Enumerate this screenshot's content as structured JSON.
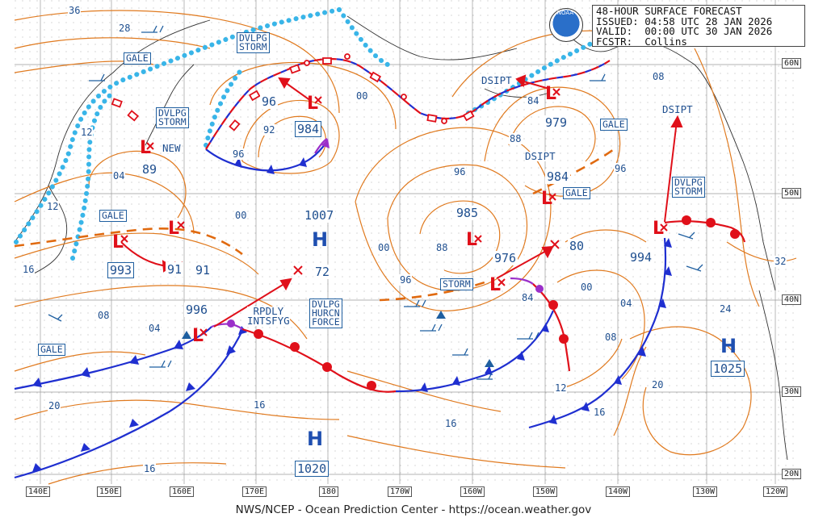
{
  "header": {
    "title": "48-HOUR SURFACE FORECAST",
    "issued": "ISSUED: 04:58 UTC 28 JAN 2026",
    "valid": "VALID:  00:00 UTC 30 JAN 2026",
    "forecaster": "FCSTR:  Collins"
  },
  "logo": "NOAA",
  "footer": "NWS/NCEP - Ocean Prediction Center - https://ocean.weather.gov",
  "longitude_labels": [
    "140E",
    "150E",
    "160E",
    "170E",
    "180",
    "170W",
    "160W",
    "150W",
    "140W",
    "130W",
    "120W"
  ],
  "latitude_labels": [
    "60N",
    "50N",
    "40N",
    "30N",
    "20N"
  ],
  "highs": [
    {
      "symbol": "H",
      "pressure": "1007"
    },
    {
      "symbol": "H",
      "pressure": "1020"
    },
    {
      "symbol": "H",
      "pressure": "1025"
    }
  ],
  "lows": [
    "984",
    "979",
    "984",
    "985",
    "976",
    "996",
    "993",
    "89",
    "96",
    "994"
  ],
  "x_pressures": [
    "91",
    "72",
    "80"
  ],
  "warning_labels": {
    "gale_1": "GALE",
    "gale_2": "GALE",
    "gale_3": "GALE",
    "gale_4": "GALE",
    "gale_5": "GALE",
    "dvlpg_storm_1": "DVLPG\nSTORM",
    "dvlpg_storm_2": "DVLPG\nSTORM",
    "dvlpg_storm_3": "DVLPG\nSTORM",
    "storm": "STORM",
    "hurcn": "DVLPG\nHURCN\nFORCE"
  },
  "annotations": {
    "new": "NEW",
    "dsipt_1": "DSIPT",
    "dsipt_2": "DSIPT",
    "dsipt_3": "DSIPT",
    "rpdly": "RPDLY\nINTSFYG"
  },
  "isobar_labels": [
    "36",
    "28",
    "12",
    "04",
    "12",
    "16",
    "08",
    "04",
    "20",
    "16",
    "16",
    "00",
    "96",
    "92",
    "00",
    "96",
    "88",
    "96",
    "84",
    "00",
    "88",
    "84",
    "96",
    "08",
    "32",
    "24",
    "04",
    "08",
    "12",
    "20",
    "16",
    "16",
    "04",
    "00"
  ],
  "colors": {
    "isobar": "#e07a1f",
    "cold_front": "#1f2fd0",
    "warm_front": "#e0101a",
    "ice": "#39b5e8",
    "occluded": "#9b2fc9",
    "low": "#e0101a",
    "label": "#1f5fa0"
  }
}
